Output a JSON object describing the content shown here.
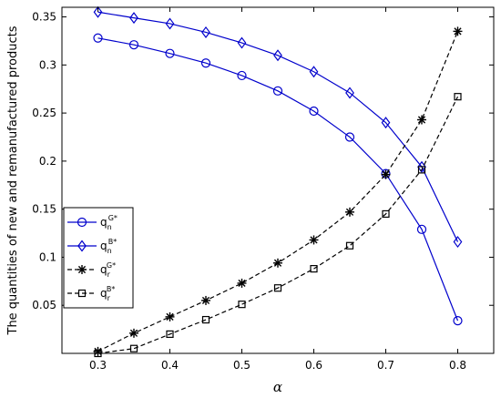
{
  "chart_data": {
    "type": "line",
    "xlabel": "α",
    "ylabel": "The quantities of new and remanufactured products",
    "xlim": [
      0.25,
      0.85
    ],
    "ylim": [
      0,
      0.36
    ],
    "x_ticks": [
      "0.3",
      "0.4",
      "0.5",
      "0.6",
      "0.7",
      "0.8"
    ],
    "y_ticks": [
      "0.05",
      "0.1",
      "0.15",
      "0.2",
      "0.25",
      "0.3",
      "0.35"
    ],
    "x": [
      0.3,
      0.35,
      0.4,
      0.45,
      0.5,
      0.55,
      0.6,
      0.65,
      0.7,
      0.75,
      0.8
    ],
    "legend_position": "center-left",
    "grid": false,
    "series": [
      {
        "name": "q_n^{G*}",
        "legend_base": "q",
        "legend_sub": "n",
        "legend_sup": "G*",
        "color": "#0000cc",
        "line": "solid",
        "marker": "circle",
        "values": [
          0.328,
          0.321,
          0.312,
          0.302,
          0.289,
          0.273,
          0.252,
          0.225,
          0.187,
          0.129,
          0.034
        ]
      },
      {
        "name": "q_n^{B*}",
        "legend_base": "q",
        "legend_sub": "n",
        "legend_sup": "B*",
        "color": "#0000cc",
        "line": "solid",
        "marker": "diamond",
        "values": [
          0.355,
          0.349,
          0.343,
          0.334,
          0.323,
          0.31,
          0.293,
          0.271,
          0.24,
          0.194,
          0.116
        ]
      },
      {
        "name": "q_r^{G*}",
        "legend_base": "q",
        "legend_sub": "r",
        "legend_sup": "G*",
        "color": "#000000",
        "line": "dashed",
        "marker": "star",
        "values": [
          0.002,
          0.021,
          0.038,
          0.055,
          0.073,
          0.094,
          0.118,
          0.147,
          0.186,
          0.243,
          0.335
        ]
      },
      {
        "name": "q_r^{B*}",
        "legend_base": "q",
        "legend_sub": "r",
        "legend_sup": "B*",
        "color": "#000000",
        "line": "dashed",
        "marker": "square",
        "values": [
          0.0,
          0.005,
          0.02,
          0.035,
          0.051,
          0.068,
          0.088,
          0.112,
          0.145,
          0.191,
          0.267
        ]
      }
    ]
  }
}
